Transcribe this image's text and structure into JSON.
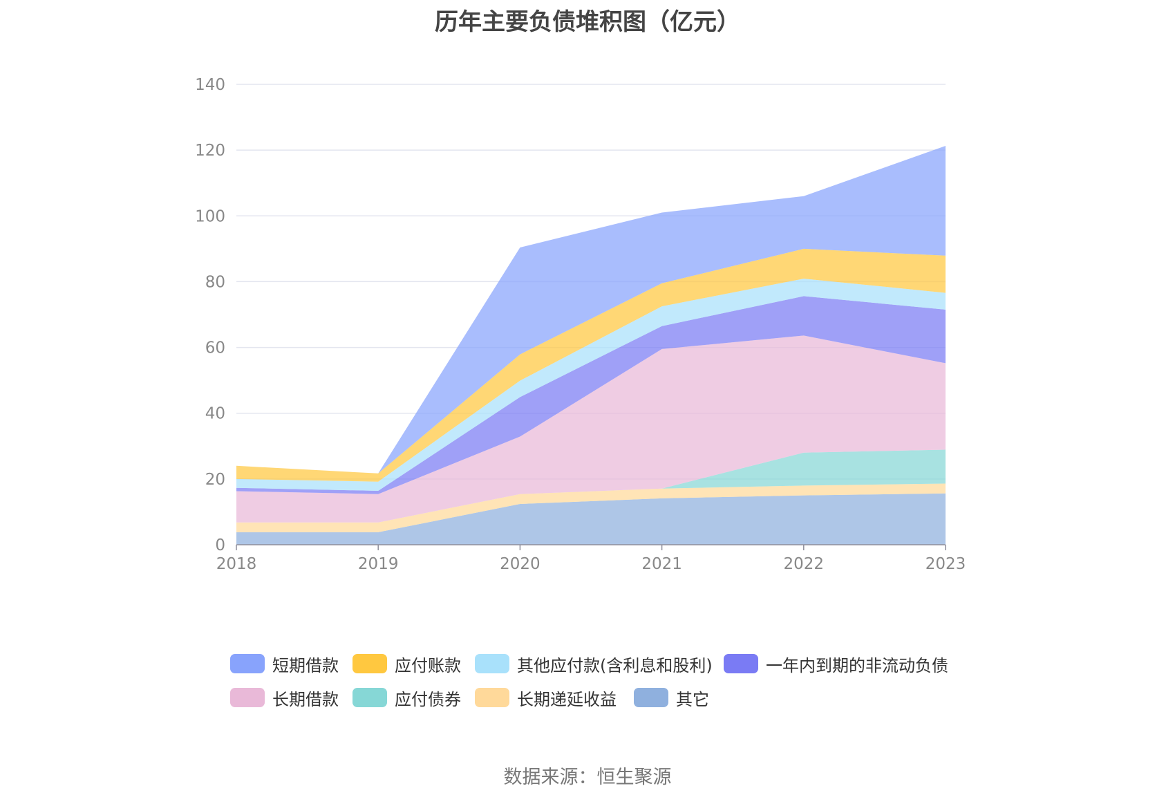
{
  "chart_data": {
    "type": "area",
    "stacked": true,
    "title": "历年主要负债堆积图（亿元）",
    "source": "数据来源：恒生聚源",
    "x": [
      "2018",
      "2019",
      "2020",
      "2021",
      "2022",
      "2023"
    ],
    "ylim": [
      0,
      140
    ],
    "yticks": [
      "0",
      "20",
      "40",
      "60",
      "80",
      "100",
      "120",
      "140"
    ],
    "grid": true,
    "legend_position": "bottom",
    "series": [
      {
        "name": "其它",
        "color": "#8fb0de",
        "values": [
          3.8,
          3.8,
          12.4,
          14.1,
          15.0,
          15.6
        ]
      },
      {
        "name": "长期递延收益",
        "color": "#ffd99a",
        "values": [
          3.0,
          3.0,
          3.0,
          3.0,
          3.0,
          3.0
        ]
      },
      {
        "name": "应付债券",
        "color": "#86d7d6",
        "values": [
          0,
          0,
          0,
          0,
          10.0,
          10.3
        ]
      },
      {
        "name": "长期借款",
        "color": "#e9b9d8",
        "values": [
          9.5,
          8.6,
          17.5,
          42.4,
          35.6,
          26.3
        ]
      },
      {
        "name": "一年内到期的非流动负债",
        "color": "#7a7bf4",
        "values": [
          1.0,
          1.0,
          12.0,
          7.0,
          12.0,
          16.3
        ]
      },
      {
        "name": "其他应付款(含利息和股利)",
        "color": "#a9e1fb",
        "values": [
          2.7,
          2.8,
          5.0,
          6.0,
          5.3,
          5.1
        ]
      },
      {
        "name": "应付账款",
        "color": "#ffc840",
        "values": [
          4.0,
          2.5,
          8.0,
          7.0,
          9.1,
          11.3
        ]
      },
      {
        "name": "短期借款",
        "color": "#88a3fc",
        "values": [
          0,
          0,
          32.5,
          21.5,
          16.0,
          33.4
        ]
      }
    ]
  },
  "legend": [
    {
      "name": "短期借款",
      "color": "#88a3fc"
    },
    {
      "name": "应付账款",
      "color": "#ffc840"
    },
    {
      "name": "其他应付款(含利息和股利)",
      "color": "#a9e1fb"
    },
    {
      "name": "一年内到期的非流动负债",
      "color": "#7a7bf4"
    },
    {
      "name": "长期借款",
      "color": "#e9b9d8"
    },
    {
      "name": "应付债券",
      "color": "#86d7d6"
    },
    {
      "name": "长期递延收益",
      "color": "#ffd99a"
    },
    {
      "name": "其它",
      "color": "#8fb0de"
    }
  ]
}
